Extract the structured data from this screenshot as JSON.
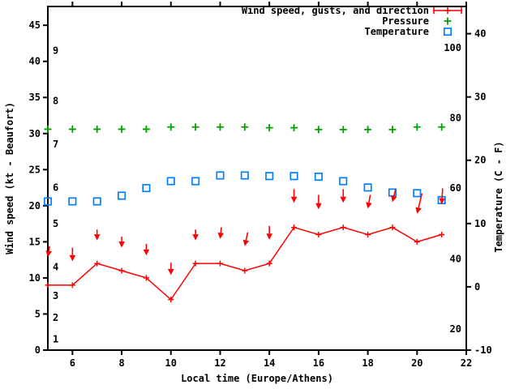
{
  "chart_data": {
    "type": "line",
    "title": "",
    "background": "#ffffff",
    "grid": false,
    "legend": {
      "position": "top-right",
      "entries": [
        {
          "label": "Wind speed, gusts, and direction",
          "color": "#ff0000",
          "symbol": "errorbar-sample"
        },
        {
          "label": "Pressure",
          "color": "#00a000",
          "symbol": "plus"
        },
        {
          "label": "Temperature",
          "color": "#0080ff",
          "symbol": "open-square"
        }
      ]
    },
    "x_axis": {
      "label": "Local time (Europe/Athens)",
      "range": [
        5,
        22
      ],
      "ticks": [
        6,
        8,
        10,
        12,
        14,
        16,
        18,
        20,
        22
      ]
    },
    "y_axis_left": {
      "label": "Wind speed (kt - Beaufort)",
      "range": [
        0,
        47.6
      ],
      "ticks": [
        0,
        5,
        10,
        15,
        20,
        25,
        30,
        35,
        40,
        45
      ],
      "beaufort_labels": [
        {
          "label": "1",
          "kt": 1.5
        },
        {
          "label": "2",
          "kt": 4.5
        },
        {
          "label": "3",
          "kt": 7.5
        },
        {
          "label": "4",
          "kt": 11.5
        },
        {
          "label": "5",
          "kt": 17.5
        },
        {
          "label": "6",
          "kt": 22.5
        },
        {
          "label": "7",
          "kt": 28.5
        },
        {
          "label": "8",
          "kt": 34.5
        },
        {
          "label": "9",
          "kt": 41.5
        }
      ]
    },
    "y_axis_right": {
      "label": "Temperature (C - F)",
      "range": [
        -10,
        44.3
      ],
      "ticks": [
        -10,
        0,
        10,
        20,
        30,
        40
      ],
      "fahrenheit_labels": [
        {
          "label": "20",
          "celsius": -6.7
        },
        {
          "label": "40",
          "celsius": 4.4
        },
        {
          "label": "60",
          "celsius": 15.6
        },
        {
          "label": "80",
          "celsius": 26.7
        },
        {
          "label": "100",
          "celsius": 37.8
        }
      ]
    },
    "hours": [
      5,
      6,
      7,
      8,
      9,
      10,
      11,
      12,
      13,
      14,
      15,
      16,
      17,
      18,
      19,
      20,
      21
    ],
    "series": [
      {
        "name": "Wind speed",
        "color": "#ff0000",
        "axis": "left",
        "style": "line-plus",
        "values": [
          9,
          9,
          12,
          11,
          10,
          7,
          12,
          12,
          11,
          12,
          17,
          16,
          17,
          16,
          17,
          15,
          16
        ]
      },
      {
        "name": "Gusts and direction",
        "color": "#ff0000",
        "axis": "left",
        "style": "arrow",
        "arrows": [
          {
            "from": 14.4,
            "to": 12.9,
            "dx": 0.07
          },
          {
            "from": 14.2,
            "to": 12.3,
            "dx": 0
          },
          {
            "from": 16.7,
            "to": 15.2,
            "dx": 0
          },
          {
            "from": 15.7,
            "to": 14.2,
            "dx": 0
          },
          {
            "from": 14.7,
            "to": 13.1,
            "dx": 0
          },
          {
            "from": 12.1,
            "to": 10.4,
            "dx": 0
          },
          {
            "from": 16.7,
            "to": 15.2,
            "dx": 0
          },
          {
            "from": 17.0,
            "to": 15.4,
            "dx": 0.05
          },
          {
            "from": 16.3,
            "to": 14.4,
            "dx": 0.12
          },
          {
            "from": 17.2,
            "to": 15.3,
            "dx": 0
          },
          {
            "from": 22.3,
            "to": 20.4,
            "dx": 0
          },
          {
            "from": 21.5,
            "to": 19.5,
            "dx": 0
          },
          {
            "from": 22.3,
            "to": 20.4,
            "dx": 0
          },
          {
            "from": 21.5,
            "to": 19.6,
            "dx": 0.1
          },
          {
            "from": 22.3,
            "to": 20.5,
            "dx": 0.13
          },
          {
            "from": 21.7,
            "to": 18.9,
            "dx": 0.2
          },
          {
            "from": 22.4,
            "to": 20.2,
            "dx": 0.04
          }
        ]
      },
      {
        "name": "Pressure",
        "color": "#00a000",
        "axis": "left",
        "style": "plus",
        "values": [
          30.6,
          30.6,
          30.6,
          30.6,
          30.6,
          30.9,
          30.9,
          30.9,
          30.9,
          30.8,
          30.8,
          30.55,
          30.55,
          30.55,
          30.55,
          30.9,
          30.9
        ]
      },
      {
        "name": "Temperature",
        "color": "#0080ff",
        "axis": "right",
        "style": "open-square",
        "values": [
          13.5,
          13.5,
          13.5,
          14.4,
          15.6,
          16.7,
          16.7,
          17.6,
          17.6,
          17.5,
          17.5,
          17.4,
          16.7,
          15.7,
          14.9,
          14.8,
          13.7
        ]
      }
    ]
  },
  "colors": {
    "wind": "#ff0000",
    "pressure": "#00a000",
    "temperature": "#0080ff",
    "axis": "#000000",
    "background": "#ffffff"
  }
}
